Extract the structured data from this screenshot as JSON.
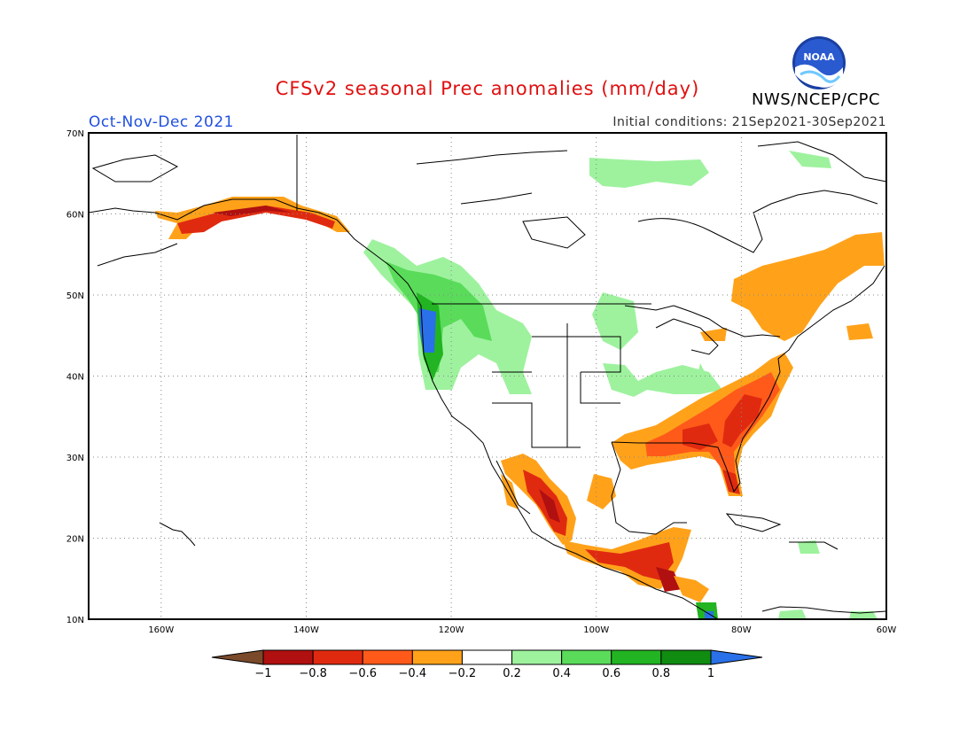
{
  "header": {
    "title": "CFSv2 seasonal Prec anomalies (mm/day)",
    "season": "Oct-Nov-Dec 2021",
    "initial_conditions": "Initial conditions: 21Sep2021-30Sep2021",
    "agency": "NWS/NCEP/CPC",
    "logo_text": "NOAA"
  },
  "colors": {
    "title": "#e01010",
    "season": "#2050e0",
    "text": "#303030"
  },
  "axes": {
    "lon_labels": [
      "160W",
      "140W",
      "120W",
      "100W",
      "80W",
      "60W"
    ],
    "lat_labels": [
      "70N",
      "60N",
      "50N",
      "40N",
      "30N",
      "20N",
      "10N"
    ]
  },
  "legend": {
    "labels": [
      "-1",
      "-0.8",
      "-0.6",
      "-0.4",
      "-0.2",
      "0.2",
      "0.4",
      "0.6",
      "0.8",
      "1"
    ],
    "colors": [
      "#7a4a2a",
      "#b01010",
      "#e02a10",
      "#ff5a1a",
      "#ffa21a",
      "#ffffff",
      "#9ef29e",
      "#5adc5a",
      "#22b422",
      "#108c10",
      "#2a70e8"
    ]
  }
}
